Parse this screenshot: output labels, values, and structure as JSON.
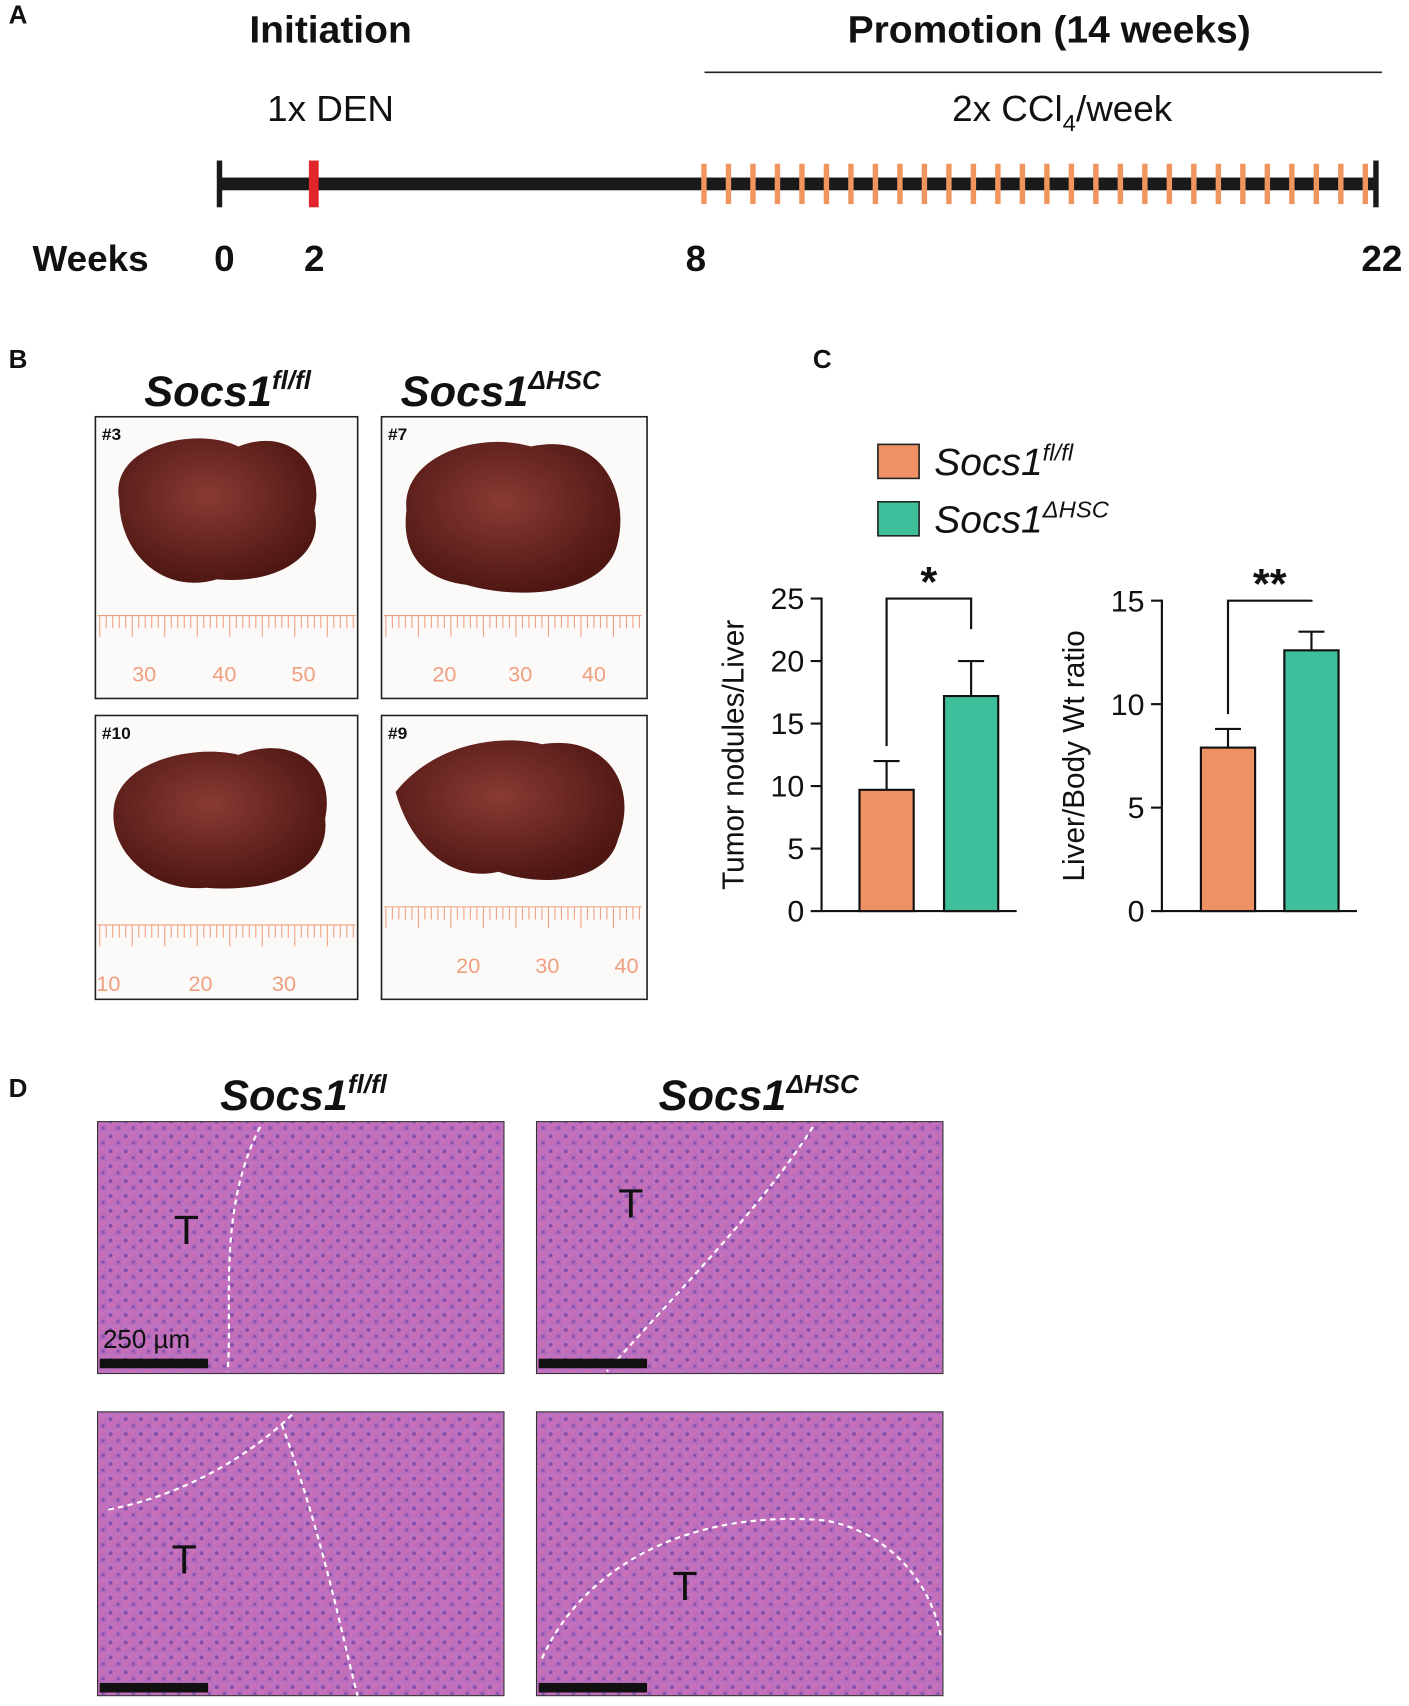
{
  "panel_labels": [
    "A",
    "B",
    "C",
    "D"
  ],
  "timeline": {
    "initiation": "Initiation",
    "promotion": "Promotion (14 weeks)",
    "den": "1x DEN",
    "ccl4": [
      "2x CCl",
      "4",
      "/week"
    ],
    "weeks_label": "Weeks",
    "weeks": [
      0,
      2,
      8,
      22
    ]
  },
  "photos": {
    "titles": [
      {
        "text": "Socs1",
        "sup": "fl/fl"
      },
      {
        "text": "Socs1",
        "sup": "ΔHSC"
      }
    ],
    "samples": [
      {
        "id": "#3",
        "ruler": [
          30,
          40,
          50
        ]
      },
      {
        "id": "#7",
        "ruler": [
          20,
          30,
          40
        ]
      },
      {
        "id": "#10",
        "ruler": [
          10,
          20,
          30
        ]
      },
      {
        "id": "#9",
        "ruler": [
          20,
          30,
          40
        ]
      }
    ]
  },
  "chart_data": [
    {
      "type": "bar",
      "ylabel": "Tumor nodules/Liver",
      "categories": [
        null
      ],
      "ylim": [
        0,
        25
      ],
      "yticks": [
        0,
        5,
        10,
        15,
        20,
        25
      ],
      "annotation": "*",
      "series": [
        {
          "name": "Socs1",
          "name_sup": "fl/fl",
          "color": "#ee9165",
          "values": [
            9.7
          ],
          "errors": [
            2.3
          ]
        },
        {
          "name": "Socs1",
          "name_sup": "ΔHSC",
          "color": "#3fbe9c",
          "values": [
            17.2
          ],
          "errors": [
            2.8
          ]
        }
      ]
    },
    {
      "type": "bar",
      "ylabel": "Liver/Body Wt ratio",
      "categories": [
        null
      ],
      "ylim": [
        0,
        15
      ],
      "yticks": [
        0,
        5,
        10,
        15
      ],
      "annotation": "**",
      "series": [
        {
          "color": "#ee9165",
          "values": [
            7.9
          ],
          "errors": [
            0.9
          ]
        },
        {
          "color": "#3fbe9c",
          "values": [
            12.6
          ],
          "errors": [
            0.9
          ]
        }
      ]
    }
  ],
  "histology": {
    "titles": [
      {
        "text": "Socs1",
        "sup": "fl/fl"
      },
      {
        "text": "Socs1",
        "sup": "ΔHSC"
      }
    ],
    "panels": [
      {
        "label": "T"
      },
      {
        "label": "T"
      },
      {
        "label": "T"
      },
      {
        "label": "T"
      }
    ],
    "scale_label": "250 µm"
  }
}
